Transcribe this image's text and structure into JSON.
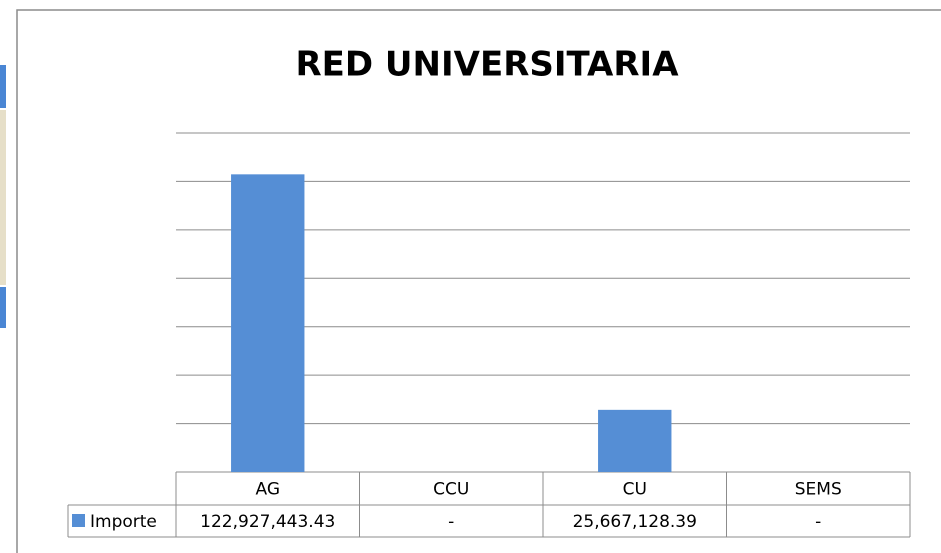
{
  "chart_data": {
    "type": "bar",
    "title": "RED UNIVERSITARIA",
    "categories": [
      "AG",
      "CCU",
      "CU",
      "SEMS"
    ],
    "series": [
      {
        "name": "Importe",
        "color": "#558ed5",
        "values": [
          122927443.43,
          0,
          25667128.39,
          0
        ],
        "value_labels": [
          "122,927,443.43",
          "-",
          "25,667,128.39",
          "-"
        ]
      }
    ],
    "ylim": [
      0,
      140000000
    ],
    "yticks": [
      0,
      20000000,
      40000000,
      60000000,
      80000000,
      100000000,
      120000000,
      140000000
    ],
    "grid": true
  }
}
